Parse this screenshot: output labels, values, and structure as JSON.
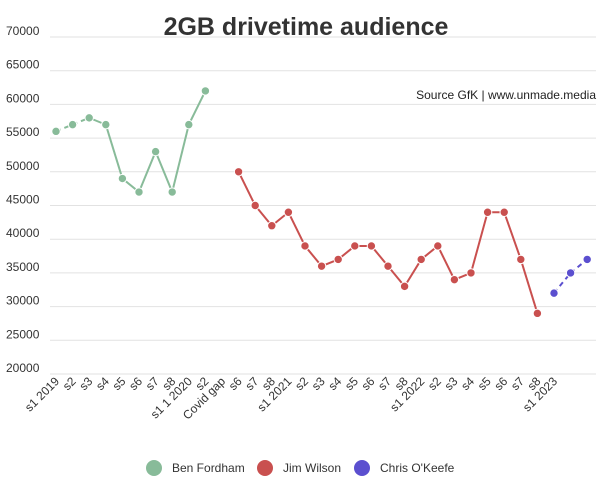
{
  "chart_data": {
    "type": "line",
    "title": "2GB drivetime audience",
    "source": "Source GfK | www.unmade.media",
    "ylim": [
      20000,
      70000
    ],
    "yticks": [
      20000,
      25000,
      30000,
      35000,
      40000,
      45000,
      50000,
      55000,
      60000,
      65000,
      70000
    ],
    "grid": true,
    "legend_position": "bottom",
    "categories": [
      "s1 2019",
      "s2",
      "s3",
      "s4",
      "s5",
      "s6",
      "s7",
      "s8",
      "s1 1 2020",
      "s2",
      "Covid gap",
      "s6",
      "s7",
      "s8",
      "s1 2021",
      "s2",
      "s3",
      "s4",
      "s5",
      "s6",
      "s7",
      "s8",
      "s1 2022",
      "s2",
      "s3",
      "s4",
      "s5",
      "s6",
      "s7",
      "s8",
      "s1 2023",
      "",
      ""
    ],
    "series": [
      {
        "name": "Ben Fordham",
        "color": "#88bb99",
        "dashed_segments": [
          0,
          1
        ],
        "points": [
          [
            0,
            56000
          ],
          [
            1,
            57000
          ],
          [
            2,
            58000
          ],
          [
            3,
            57000
          ],
          [
            4,
            49000
          ],
          [
            5,
            47000
          ],
          [
            6,
            53000
          ],
          [
            7,
            47000
          ],
          [
            8,
            57000
          ],
          [
            9,
            62000
          ]
        ]
      },
      {
        "name": "Jim Wilson",
        "color": "#c9504f",
        "dashed_segments": [],
        "points": [
          [
            11,
            50000
          ],
          [
            12,
            45000
          ],
          [
            13,
            42000
          ],
          [
            14,
            44000
          ],
          [
            15,
            39000
          ],
          [
            16,
            36000
          ],
          [
            17,
            37000
          ],
          [
            18,
            39000
          ],
          [
            19,
            39000
          ],
          [
            20,
            36000
          ],
          [
            21,
            33000
          ],
          [
            22,
            37000
          ],
          [
            23,
            39000
          ],
          [
            24,
            34000
          ],
          [
            25,
            35000
          ],
          [
            26,
            44000
          ],
          [
            27,
            44000
          ],
          [
            28,
            37000
          ],
          [
            29,
            29000
          ]
        ]
      },
      {
        "name": "Chris O'Keefe",
        "color": "#5b4fcf",
        "dashed_segments": [
          0,
          1
        ],
        "points": [
          [
            30,
            32000
          ],
          [
            31,
            35000
          ],
          [
            32,
            37000
          ]
        ]
      }
    ]
  }
}
